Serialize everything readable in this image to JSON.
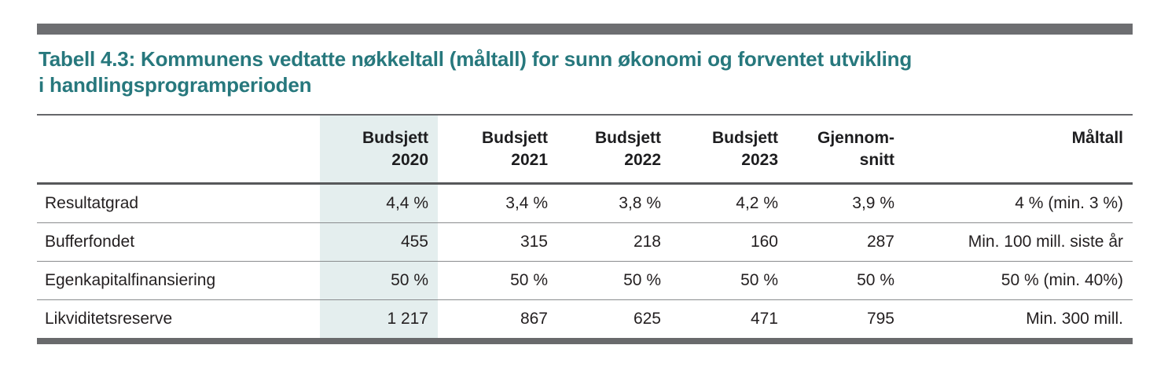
{
  "caption": {
    "lines": [
      "Tabell 4.3: Kommunens vedtatte nøkkeltall (måltall) for sunn økonomi og forventet utvikling",
      "i handlingsprogramperioden"
    ]
  },
  "table": {
    "columns": [
      {
        "id": "row-label",
        "line1": "",
        "line2": "",
        "highlighted": false
      },
      {
        "id": "budsjett-2020",
        "line1": "Budsjett",
        "line2": "2020",
        "highlighted": true
      },
      {
        "id": "budsjett-2021",
        "line1": "Budsjett",
        "line2": "2021",
        "highlighted": false
      },
      {
        "id": "budsjett-2022",
        "line1": "Budsjett",
        "line2": "2022",
        "highlighted": false
      },
      {
        "id": "budsjett-2023",
        "line1": "Budsjett",
        "line2": "2023",
        "highlighted": false
      },
      {
        "id": "gjennomsnitt",
        "line1": "Gjennom-",
        "line2": "snitt",
        "highlighted": false
      },
      {
        "id": "maltall",
        "line1": "Måltall",
        "line2": "",
        "highlighted": false
      }
    ],
    "rows": [
      {
        "label": "Resultatgrad",
        "values": [
          "4,4 %",
          "3,4 %",
          "3,8 %",
          "4,2 %",
          "3,9 %",
          "4 % (min. 3 %)"
        ]
      },
      {
        "label": "Bufferfondet",
        "values": [
          "455",
          "315",
          "218",
          "160",
          "287",
          "Min. 100 mill. siste år"
        ]
      },
      {
        "label": "Egenkapitalfinansiering",
        "values": [
          "50 %",
          "50 %",
          "50 %",
          "50 %",
          "50 %",
          "50 % (min. 40%)"
        ]
      },
      {
        "label": "Likviditetsreserve",
        "values": [
          "1 217",
          "867",
          "625",
          "471",
          "795",
          "Min. 300 mill."
        ]
      }
    ]
  },
  "colors": {
    "accent_teal": "#27787d",
    "column_highlight": "#e4eeee",
    "top_bar": "#6d6e71",
    "bottom_bar": "#696a6c",
    "text": "#231f20"
  }
}
